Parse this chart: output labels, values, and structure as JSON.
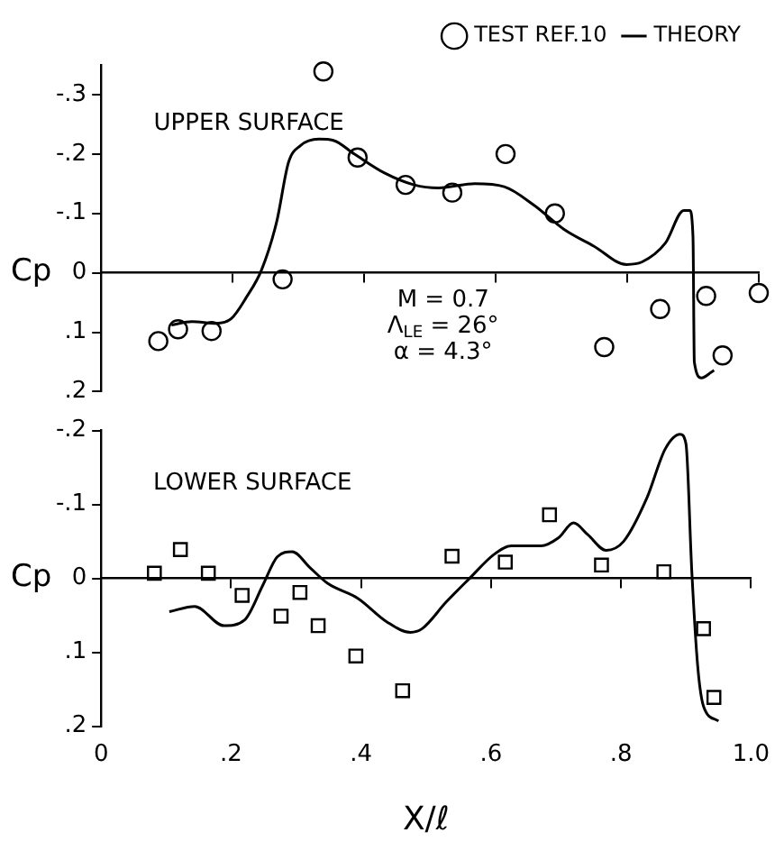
{
  "chart_data": [
    {
      "type": "scatter",
      "legend": "top right",
      "tick_labels": "y",
      "annotations": [
        "UPPER SURFACE",
        "M = 0.7",
        "Λ$_{LE}$ = 26°",
        "α = 4.3°"
      ],
      "ylabel": "Cp",
      "xlim": [
        0,
        1
      ],
      "xticks": [
        {
          "value": 0,
          "label": null
        },
        {
          "value": 0.2,
          "label": null
        },
        {
          "value": 0.4,
          "label": null
        },
        {
          "value": 0.6,
          "label": null
        },
        {
          "value": 0.8,
          "label": null
        },
        {
          "value": 1,
          "label": null
        }
      ],
      "ylim": [
        0.2,
        -0.35
      ],
      "yticks": [
        {
          "value": -0.3,
          "label": "-.3"
        },
        {
          "value": -0.2,
          "label": "-.2"
        },
        {
          "value": -0.1,
          "label": "-.1"
        },
        0,
        {
          "value": 0.1,
          "label": ".1"
        },
        {
          "value": 0.2,
          "label": ".2"
        }
      ],
      "series": [
        {
          "name": "TEST REF.10",
          "type": "scatter",
          "marker": "circle",
          "color": "#000000",
          "x": [
            0.087,
            0.117,
            0.168,
            0.276,
            0.338,
            0.39,
            0.463,
            0.534,
            0.615,
            0.69,
            0.765,
            0.85,
            0.92,
            0.945,
            1.0
          ],
          "values": [
            0.115,
            0.095,
            0.098,
            0.011,
            -0.339,
            -0.194,
            -0.148,
            -0.135,
            -0.2,
            -0.1,
            0.125,
            0.061,
            0.039,
            0.139,
            0.034
          ]
        },
        {
          "name": "THEORY",
          "type": "line",
          "marker": "none",
          "color": "#000000",
          "x": [
            0.107,
            0.138,
            0.175,
            0.198,
            0.221,
            0.244,
            0.267,
            0.285,
            0.303,
            0.331,
            0.353,
            0.385,
            0.431,
            0.476,
            0.513,
            0.568,
            0.613,
            0.658,
            0.704,
            0.749,
            0.799,
            0.822,
            0.858,
            0.886,
            0.895,
            0.9,
            0.902,
            0.913,
            0.927,
            0.932
          ],
          "values": [
            0.088,
            0.082,
            0.085,
            0.077,
            0.041,
            -0.005,
            -0.086,
            -0.186,
            -0.214,
            -0.225,
            -0.223,
            -0.2,
            -0.168,
            -0.148,
            -0.143,
            -0.15,
            -0.145,
            -0.114,
            -0.073,
            -0.045,
            -0.014,
            -0.018,
            -0.05,
            -0.105,
            -0.105,
            -0.06,
            0.15,
            0.177,
            0.168,
            0.164
          ]
        }
      ]
    },
    {
      "type": "scatter",
      "annotations": [
        "LOWER SURFACE"
      ],
      "ylabel": "Cp",
      "xlabel": "X/ℓ",
      "xlim": [
        0,
        1
      ],
      "xticks": [
        0,
        {
          "value": 0.2,
          "label": ".2"
        },
        {
          "value": 0.4,
          "label": ".4"
        },
        {
          "value": 0.6,
          "label": ".6"
        },
        {
          "value": 0.8,
          "label": ".8"
        },
        {
          "value": 1,
          "label": "1.0"
        }
      ],
      "ylim": [
        0.2,
        -0.2
      ],
      "yticks": [
        {
          "value": -0.2,
          "label": "-.2"
        },
        {
          "value": -0.1,
          "label": "-.1"
        },
        0,
        {
          "value": 0.1,
          "label": ".1"
        },
        {
          "value": 0.2,
          "label": ".2"
        }
      ],
      "series": [
        {
          "type": "scatter",
          "marker": "square",
          "color": "#000000",
          "x": [
            0.082,
            0.122,
            0.165,
            0.217,
            0.277,
            0.306,
            0.334,
            0.392,
            0.464,
            0.54,
            0.622,
            0.69,
            0.77,
            0.866,
            0.927,
            0.943
          ],
          "values": [
            -0.007,
            -0.039,
            -0.007,
            0.023,
            0.051,
            0.019,
            0.064,
            0.105,
            0.152,
            -0.03,
            -0.022,
            -0.086,
            -0.018,
            -0.009,
            0.068,
            0.161
          ]
        },
        {
          "type": "line",
          "marker": "none",
          "color": "#000000",
          "x": [
            0.105,
            0.144,
            0.189,
            0.221,
            0.249,
            0.271,
            0.294,
            0.322,
            0.349,
            0.395,
            0.44,
            0.476,
            0.494,
            0.531,
            0.567,
            0.604,
            0.631,
            0.677,
            0.704,
            0.727,
            0.749,
            0.777,
            0.804,
            0.84,
            0.868,
            0.891,
            0.9,
            0.909,
            0.918,
            0.927,
            0.95
          ],
          "values": [
            0.045,
            0.038,
            0.064,
            0.056,
            0.009,
            -0.029,
            -0.036,
            -0.014,
            0.007,
            0.027,
            0.059,
            0.073,
            0.068,
            0.032,
            0,
            -0.032,
            -0.044,
            -0.044,
            -0.055,
            -0.075,
            -0.059,
            -0.038,
            -0.05,
            -0.109,
            -0.175,
            -0.195,
            -0.182,
            -0.009,
            0.118,
            0.173,
            0.193
          ]
        }
      ]
    }
  ]
}
